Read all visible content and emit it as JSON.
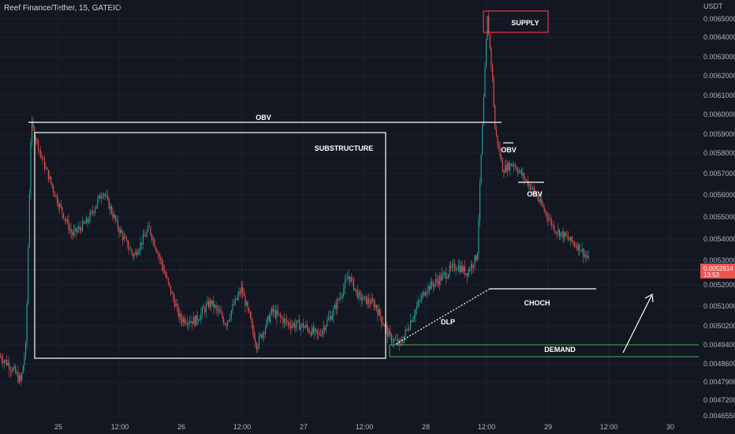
{
  "header": {
    "title": "Reef Finance/Tether, 15, GATEIO"
  },
  "chart_data": {
    "type": "candlestick",
    "title": "Reef Finance/Tether, 15, GATEIO",
    "ylabel": "USDT",
    "ylim": [
      0.004655,
      0.00658
    ],
    "price_ticks": [
      "0.0065000",
      "0.0064000",
      "0.0063000",
      "0.0062000",
      "0.0061000",
      "0.0060000",
      "0.0059000",
      "0.0058000",
      "0.0057000",
      "0.0056000",
      "0.0055000",
      "0.0054000",
      "0.0053000",
      "0.0052000",
      "0.0051000",
      "0.0050200",
      "0.0049400",
      "0.0048600",
      "0.0047900",
      "0.0047200",
      "0.0046550"
    ],
    "time_ticks": [
      "25",
      "12:00",
      "26",
      "12:00",
      "27",
      "12:00",
      "28",
      "12:00",
      "29",
      "12:00",
      "30"
    ],
    "last_price": {
      "value": "0.0052614",
      "countdown": "13:53"
    },
    "colors": {
      "up": "#26a69a",
      "down": "#ef5350",
      "background": "#131722",
      "annotation": "#ffffff",
      "demand": "#4caf50",
      "supply": "#f23645"
    },
    "price_path": [
      [
        0,
        0.00489
      ],
      [
        0.02,
        0.00485
      ],
      [
        0.04,
        0.00479
      ],
      [
        0.05,
        0.00494
      ],
      [
        0.06,
        0.00596
      ],
      [
        0.08,
        0.00578
      ],
      [
        0.11,
        0.00558
      ],
      [
        0.14,
        0.00542
      ],
      [
        0.17,
        0.00548
      ],
      [
        0.2,
        0.00562
      ],
      [
        0.23,
        0.00545
      ],
      [
        0.26,
        0.00532
      ],
      [
        0.29,
        0.00545
      ],
      [
        0.32,
        0.00525
      ],
      [
        0.35,
        0.00505
      ],
      [
        0.38,
        0.00504
      ],
      [
        0.41,
        0.00512
      ],
      [
        0.44,
        0.00503
      ],
      [
        0.47,
        0.00518
      ],
      [
        0.5,
        0.00494
      ],
      [
        0.53,
        0.00508
      ],
      [
        0.56,
        0.00503
      ],
      [
        0.59,
        0.00502
      ],
      [
        0.62,
        0.00498
      ],
      [
        0.65,
        0.00508
      ],
      [
        0.68,
        0.00524
      ],
      [
        0.7,
        0.00514
      ],
      [
        0.73,
        0.00511
      ],
      [
        0.76,
        0.00497
      ],
      [
        0.78,
        0.00494
      ],
      [
        0.8,
        0.00504
      ],
      [
        0.83,
        0.00518
      ],
      [
        0.86,
        0.00523
      ],
      [
        0.89,
        0.00528
      ],
      [
        0.91,
        0.00525
      ],
      [
        0.93,
        0.00532
      ],
      [
        0.95,
        0.00651
      ],
      [
        0.96,
        0.00618
      ],
      [
        0.965,
        0.00592
      ],
      [
        0.98,
        0.00572
      ],
      [
        1.0,
        0.00575
      ],
      [
        1.04,
        0.00562
      ],
      [
        1.08,
        0.00545
      ],
      [
        1.13,
        0.00536
      ],
      [
        1.16,
        0.00526
      ]
    ],
    "annotations": [
      {
        "label": "OBV",
        "kind": "line"
      },
      {
        "label": "SUBSTRUCTURE",
        "kind": "box"
      },
      {
        "label": "SUPPLY",
        "kind": "box"
      },
      {
        "label": "OBV",
        "kind": "line"
      },
      {
        "label": "OBV",
        "kind": "line"
      },
      {
        "label": "CHOCH",
        "kind": "line"
      },
      {
        "label": "DLP",
        "kind": "dotted-line"
      },
      {
        "label": "DEMAND",
        "kind": "zone"
      }
    ]
  }
}
